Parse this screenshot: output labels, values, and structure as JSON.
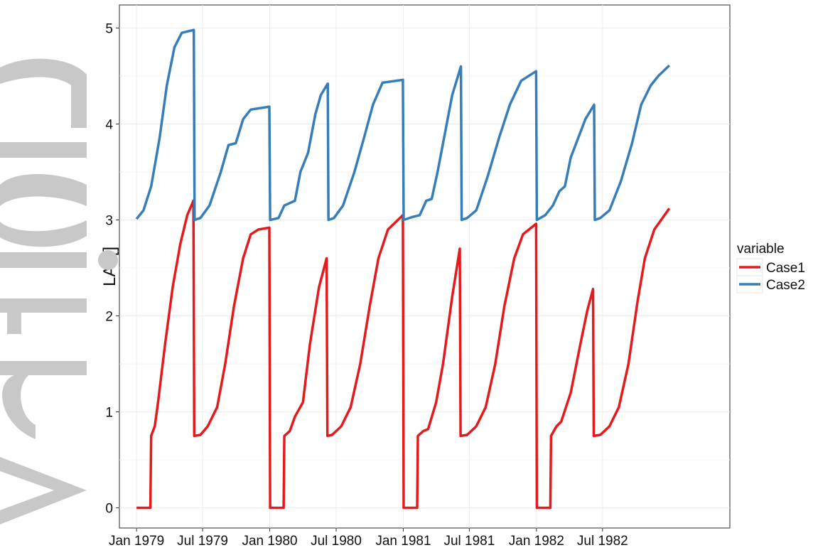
{
  "chart_data": {
    "type": "line",
    "xlabel": "",
    "ylabel": "LAI []",
    "ylim": [
      -0.21,
      5.24
    ],
    "xlim": [
      "1978-11-15",
      "1983-06-15"
    ],
    "x_ticks": [
      {
        "date": "1979-01-01",
        "label": "Jan 1979"
      },
      {
        "date": "1979-07-01",
        "label": "Jul 1979"
      },
      {
        "date": "1980-01-01",
        "label": "Jan 1980"
      },
      {
        "date": "1980-07-01",
        "label": "Jul 1980"
      },
      {
        "date": "1981-01-01",
        "label": "Jan 1981"
      },
      {
        "date": "1981-07-01",
        "label": "Jul 1981"
      },
      {
        "date": "1982-01-01",
        "label": "Jan 1982"
      },
      {
        "date": "1982-07-01",
        "label": "Jul 1982"
      }
    ],
    "y_ticks": [
      0,
      1,
      2,
      3,
      4,
      5
    ],
    "grid": true,
    "legend": {
      "title": "variable",
      "position": "right"
    },
    "series": [
      {
        "name": "Case1",
        "color": "#e41a1c",
        "points": [
          [
            "1979-01-01",
            0.0
          ],
          [
            "1979-02-08",
            0.0
          ],
          [
            "1979-02-10",
            0.75
          ],
          [
            "1979-02-20",
            0.85
          ],
          [
            "1979-03-01",
            1.1
          ],
          [
            "1979-03-20",
            1.7
          ],
          [
            "1979-04-10",
            2.3
          ],
          [
            "1979-05-01",
            2.75
          ],
          [
            "1979-05-20",
            3.05
          ],
          [
            "1979-06-06",
            3.2
          ],
          [
            "1979-06-08",
            0.75
          ],
          [
            "1979-06-25",
            0.76
          ],
          [
            "1979-07-15",
            0.85
          ],
          [
            "1979-08-10",
            1.05
          ],
          [
            "1979-09-01",
            1.5
          ],
          [
            "1979-09-25",
            2.1
          ],
          [
            "1979-10-20",
            2.6
          ],
          [
            "1979-11-10",
            2.85
          ],
          [
            "1979-12-01",
            2.9
          ],
          [
            "1979-12-31",
            2.92
          ],
          [
            "1980-01-02",
            0.0
          ],
          [
            "1980-02-08",
            0.0
          ],
          [
            "1980-02-10",
            0.75
          ],
          [
            "1980-02-25",
            0.8
          ],
          [
            "1980-03-10",
            0.95
          ],
          [
            "1980-04-01",
            1.1
          ],
          [
            "1980-04-20",
            1.7
          ],
          [
            "1980-05-15",
            2.3
          ],
          [
            "1980-06-05",
            2.6
          ],
          [
            "1980-06-07",
            0.75
          ],
          [
            "1980-06-20",
            0.76
          ],
          [
            "1980-07-15",
            0.85
          ],
          [
            "1980-08-10",
            1.05
          ],
          [
            "1980-09-05",
            1.5
          ],
          [
            "1980-10-01",
            2.1
          ],
          [
            "1980-10-25",
            2.6
          ],
          [
            "1980-11-20",
            2.9
          ],
          [
            "1980-12-31",
            3.05
          ],
          [
            "1981-01-02",
            0.0
          ],
          [
            "1981-02-08",
            0.0
          ],
          [
            "1981-02-10",
            0.75
          ],
          [
            "1981-02-25",
            0.8
          ],
          [
            "1981-03-10",
            0.82
          ],
          [
            "1981-04-01",
            1.1
          ],
          [
            "1981-04-20",
            1.5
          ],
          [
            "1981-05-15",
            2.2
          ],
          [
            "1981-06-05",
            2.7
          ],
          [
            "1981-06-07",
            0.75
          ],
          [
            "1981-06-25",
            0.76
          ],
          [
            "1981-07-20",
            0.85
          ],
          [
            "1981-08-15",
            1.05
          ],
          [
            "1981-09-10",
            1.5
          ],
          [
            "1981-10-05",
            2.1
          ],
          [
            "1981-11-01",
            2.6
          ],
          [
            "1981-11-25",
            2.85
          ],
          [
            "1981-12-31",
            2.96
          ],
          [
            "1982-01-02",
            0.0
          ],
          [
            "1982-02-08",
            0.0
          ],
          [
            "1982-02-10",
            0.75
          ],
          [
            "1982-02-25",
            0.85
          ],
          [
            "1982-03-10",
            0.9
          ],
          [
            "1982-04-05",
            1.2
          ],
          [
            "1982-05-01",
            1.7
          ],
          [
            "1982-05-20",
            2.05
          ],
          [
            "1982-06-05",
            2.28
          ],
          [
            "1982-06-07",
            0.75
          ],
          [
            "1982-06-25",
            0.76
          ],
          [
            "1982-07-20",
            0.85
          ],
          [
            "1982-08-15",
            1.05
          ],
          [
            "1982-09-10",
            1.5
          ],
          [
            "1982-10-05",
            2.15
          ],
          [
            "1982-10-25",
            2.6
          ],
          [
            "1982-11-20",
            2.9
          ],
          [
            "1982-12-31",
            3.12
          ]
        ]
      },
      {
        "name": "Case2",
        "color": "#377eb8",
        "points": [
          [
            "1979-01-01",
            3.01
          ],
          [
            "1979-01-20",
            3.1
          ],
          [
            "1979-02-10",
            3.35
          ],
          [
            "1979-03-05",
            3.85
          ],
          [
            "1979-03-25",
            4.4
          ],
          [
            "1979-04-15",
            4.8
          ],
          [
            "1979-05-05",
            4.95
          ],
          [
            "1979-06-07",
            4.98
          ],
          [
            "1979-06-09",
            3.0
          ],
          [
            "1979-06-25",
            3.02
          ],
          [
            "1979-07-20",
            3.15
          ],
          [
            "1979-08-20",
            3.5
          ],
          [
            "1979-09-10",
            3.78
          ],
          [
            "1979-09-30",
            3.8
          ],
          [
            "1979-10-20",
            4.05
          ],
          [
            "1979-11-10",
            4.15
          ],
          [
            "1979-12-31",
            4.18
          ],
          [
            "1980-01-02",
            3.0
          ],
          [
            "1980-01-25",
            3.02
          ],
          [
            "1980-02-10",
            3.15
          ],
          [
            "1980-03-10",
            3.2
          ],
          [
            "1980-03-25",
            3.5
          ],
          [
            "1980-04-15",
            3.7
          ],
          [
            "1980-05-05",
            4.1
          ],
          [
            "1980-05-20",
            4.3
          ],
          [
            "1980-06-08",
            4.42
          ],
          [
            "1980-06-10",
            3.0
          ],
          [
            "1980-06-25",
            3.02
          ],
          [
            "1980-07-20",
            3.15
          ],
          [
            "1980-08-20",
            3.5
          ],
          [
            "1980-09-15",
            3.85
          ],
          [
            "1980-10-10",
            4.2
          ],
          [
            "1980-11-05",
            4.43
          ],
          [
            "1980-12-31",
            4.46
          ],
          [
            "1981-01-02",
            3.0
          ],
          [
            "1981-01-25",
            3.03
          ],
          [
            "1981-02-15",
            3.05
          ],
          [
            "1981-03-05",
            3.2
          ],
          [
            "1981-03-20",
            3.22
          ],
          [
            "1981-04-05",
            3.5
          ],
          [
            "1981-04-25",
            3.9
          ],
          [
            "1981-05-15",
            4.3
          ],
          [
            "1981-06-08",
            4.6
          ],
          [
            "1981-06-10",
            3.0
          ],
          [
            "1981-06-25",
            3.02
          ],
          [
            "1981-07-20",
            3.1
          ],
          [
            "1981-08-20",
            3.45
          ],
          [
            "1981-09-20",
            3.85
          ],
          [
            "1981-10-20",
            4.2
          ],
          [
            "1981-11-20",
            4.45
          ],
          [
            "1981-12-31",
            4.55
          ],
          [
            "1982-01-02",
            3.0
          ],
          [
            "1982-01-25",
            3.05
          ],
          [
            "1982-02-15",
            3.15
          ],
          [
            "1982-03-05",
            3.3
          ],
          [
            "1982-03-20",
            3.35
          ],
          [
            "1982-04-05",
            3.65
          ],
          [
            "1982-04-25",
            3.85
          ],
          [
            "1982-05-15",
            4.05
          ],
          [
            "1982-06-08",
            4.2
          ],
          [
            "1982-06-10",
            3.0
          ],
          [
            "1982-06-25",
            3.02
          ],
          [
            "1982-07-20",
            3.1
          ],
          [
            "1982-08-20",
            3.4
          ],
          [
            "1982-09-20",
            3.8
          ],
          [
            "1982-10-15",
            4.2
          ],
          [
            "1982-11-10",
            4.4
          ],
          [
            "1982-12-01",
            4.5
          ],
          [
            "1982-12-31",
            4.61
          ]
        ]
      }
    ]
  },
  "watermark": {
    "text": "Article",
    "color": "#c8c8c8"
  }
}
